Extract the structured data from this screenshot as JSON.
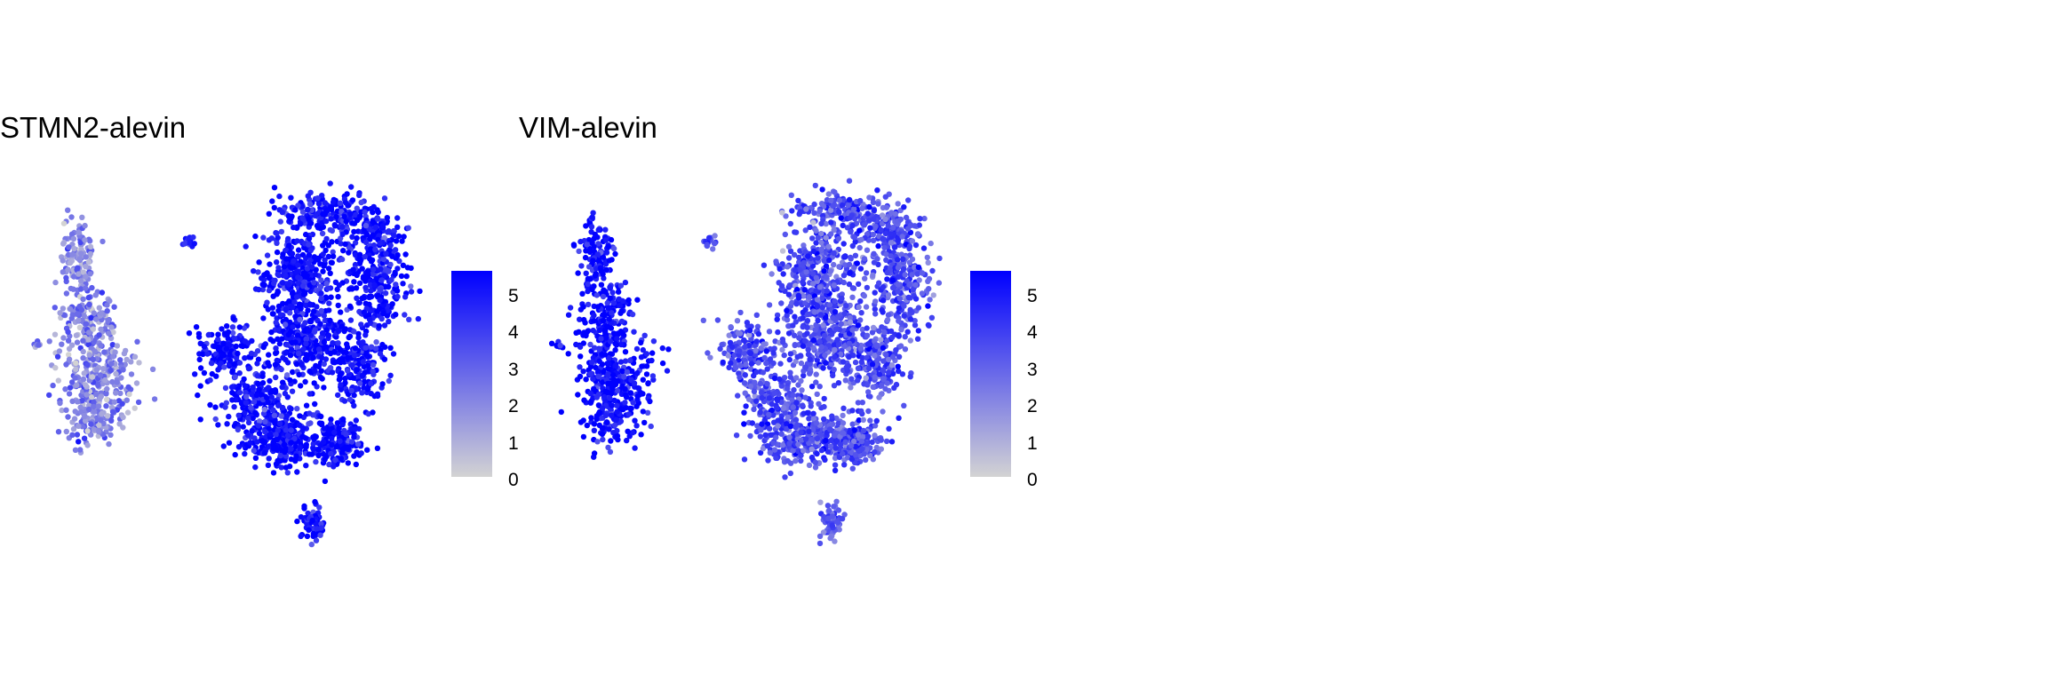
{
  "panels": [
    {
      "title": "STMN2-alevin"
    },
    {
      "title": "VIM-alevin"
    }
  ],
  "colors": {
    "low": "#d3d3d3",
    "high": "#0000ff",
    "background": "#ffffff"
  },
  "chart_data": [
    {
      "type": "scatter",
      "title": "STMN2-alevin",
      "xlabel": "",
      "ylabel": "",
      "grid": false,
      "legend": {
        "position": "right",
        "ticks": [
          "0",
          "1",
          "2",
          "3",
          "4",
          "5"
        ],
        "range": [
          0,
          5.6
        ]
      },
      "color_scale": {
        "low": "#d3d3d3",
        "high": "#0000ff"
      },
      "regions": [
        {
          "name": "left cluster",
          "expression_mean": 2.1
        },
        {
          "name": "small left satellite",
          "expression_mean": 4.5
        },
        {
          "name": "main cluster",
          "expression_mean": 5.3
        },
        {
          "name": "bottom cluster",
          "expression_mean": 5.4
        }
      ]
    },
    {
      "type": "scatter",
      "title": "VIM-alevin",
      "xlabel": "",
      "ylabel": "",
      "grid": false,
      "legend": {
        "position": "right",
        "ticks": [
          "0",
          "1",
          "2",
          "3",
          "4",
          "5"
        ],
        "range": [
          0,
          5.6
        ]
      },
      "color_scale": {
        "low": "#d3d3d3",
        "high": "#0000ff"
      },
      "regions": [
        {
          "name": "left cluster",
          "expression_mean": 5.4
        },
        {
          "name": "small left satellite",
          "expression_mean": 3.8
        },
        {
          "name": "main cluster",
          "expression_mean": 3.6
        },
        {
          "name": "bottom cluster",
          "expression_mean": 3.0
        }
      ]
    }
  ]
}
